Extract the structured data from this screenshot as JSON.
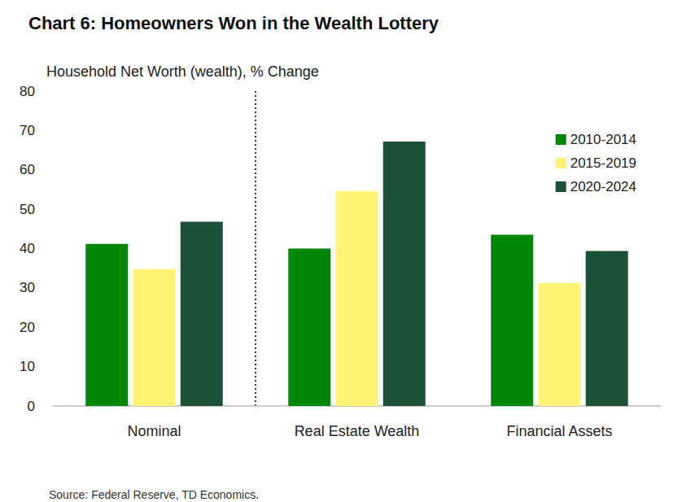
{
  "chart_data": {
    "type": "bar",
    "title": "Chart 6: Homeowners Won in the Wealth Lottery",
    "ylabel": "Household Net Worth (wealth), % Change",
    "source": "Source: Federal Reserve, TD Economics.",
    "categories": [
      "Nominal",
      "Real Estate Wealth",
      "Financial Assets"
    ],
    "series": [
      {
        "name": "2010-2014",
        "color": "#00870a",
        "values": [
          41.2,
          40.0,
          43.5
        ]
      },
      {
        "name": "2015-2019",
        "color": "#fff475",
        "values": [
          34.8,
          54.6,
          31.2
        ]
      },
      {
        "name": "2020-2024",
        "color": "#1c5236",
        "values": [
          46.8,
          67.2,
          39.4
        ]
      }
    ],
    "ylim": [
      0,
      80
    ],
    "yticks": [
      0,
      10,
      20,
      30,
      40,
      50,
      60,
      70,
      80
    ],
    "grid": false,
    "legend": "upper right",
    "data_labels": false
  }
}
